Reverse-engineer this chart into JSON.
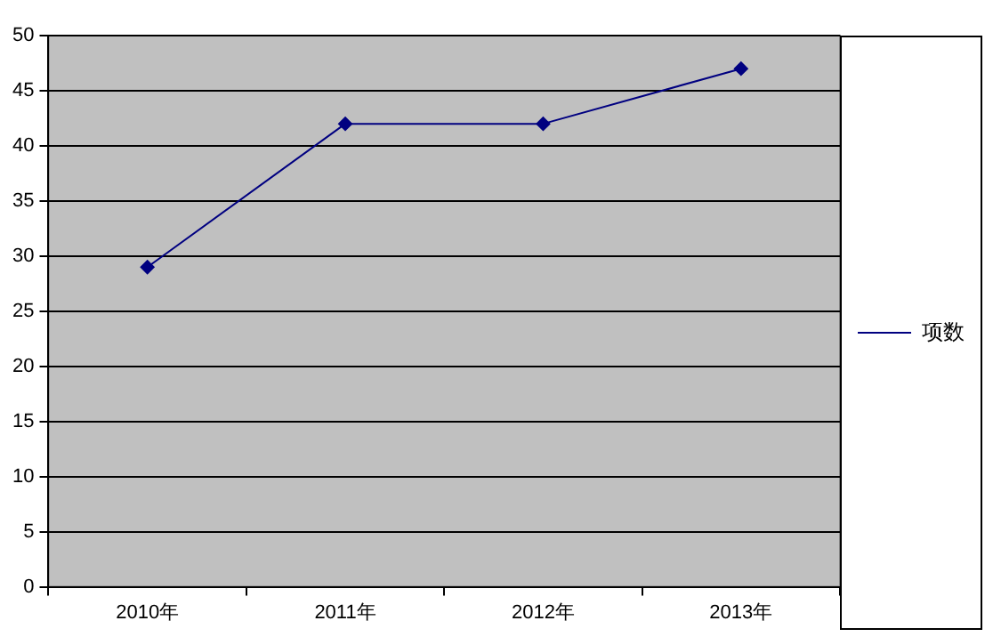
{
  "chart_data": {
    "type": "line",
    "categories": [
      "2010年",
      "2011年",
      "2012年",
      "2013年"
    ],
    "series": [
      {
        "name": "项数",
        "color": "#000080",
        "values": [
          29,
          42,
          42,
          47
        ]
      }
    ],
    "ylim": [
      0,
      50
    ],
    "yticks": [
      0,
      5,
      10,
      15,
      20,
      25,
      30,
      35,
      40,
      45,
      50
    ],
    "grid": "y",
    "legend": "right",
    "marker": "diamond",
    "line_style": "solid"
  }
}
